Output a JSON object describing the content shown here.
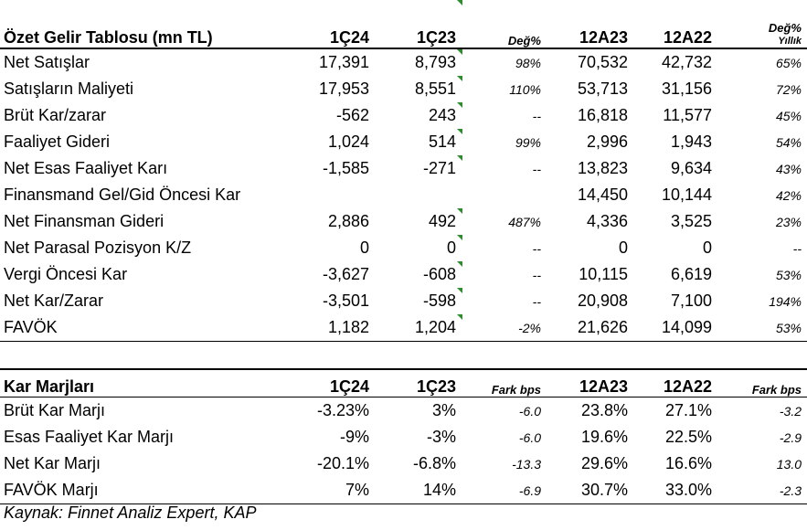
{
  "income": {
    "headers": {
      "title": "Özet Gelir Tablosu (mn TL)",
      "q24": "1Ç24",
      "q23": "1Ç23",
      "chg": "Değ%",
      "t23": "12A23",
      "t22": "12A22",
      "yoy_top": "Değ%",
      "yoy_bottom": "Yıllık"
    },
    "rows": [
      {
        "label": "Net Satışlar",
        "q24": "17,391",
        "q23": "8,793",
        "chg": "98%",
        "t23": "70,532",
        "t22": "42,732",
        "yoy": "65%"
      },
      {
        "label": "Satışların Maliyeti",
        "q24": "17,953",
        "q23": "8,551",
        "chg": "110%",
        "t23": "53,713",
        "t22": "31,156",
        "yoy": "72%"
      },
      {
        "label": "Brüt Kar/zarar",
        "q24": "-562",
        "q23": "243",
        "chg": "--",
        "t23": "16,818",
        "t22": "11,577",
        "yoy": "45%"
      },
      {
        "label": "Faaliyet Gideri",
        "q24": "1,024",
        "q23": "514",
        "chg": "99%",
        "t23": "2,996",
        "t22": "1,943",
        "yoy": "54%"
      },
      {
        "label": "Net Esas Faaliyet Karı",
        "q24": "-1,585",
        "q23": "-271",
        "chg": "--",
        "t23": "13,823",
        "t22": "9,634",
        "yoy": "43%"
      },
      {
        "label": "Finansmand Gel/Gid Öncesi Kar",
        "q24": "",
        "q23": "",
        "chg": "",
        "t23": "14,450",
        "t22": "10,144",
        "yoy": "42%"
      },
      {
        "label": "Net Finansman Gideri",
        "q24": "2,886",
        "q23": "492",
        "chg": "487%",
        "t23": "4,336",
        "t22": "3,525",
        "yoy": "23%"
      },
      {
        "label": "Net Parasal Pozisyon K/Z",
        "q24": "0",
        "q23": "0",
        "chg": "--",
        "t23": "0",
        "t22": "0",
        "yoy": "--"
      },
      {
        "label": "Vergi Öncesi Kar",
        "q24": "-3,627",
        "q23": "-608",
        "chg": "--",
        "t23": "10,115",
        "t22": "6,619",
        "yoy": "53%"
      },
      {
        "label": "Net Kar/Zarar",
        "q24": "-3,501",
        "q23": "-598",
        "chg": "--",
        "t23": "20,908",
        "t22": "7,100",
        "yoy": "194%"
      },
      {
        "label": "FAVÖK",
        "q24": "1,182",
        "q23": "1,204",
        "chg": "-2%",
        "t23": "21,626",
        "t22": "14,099",
        "yoy": "53%"
      }
    ]
  },
  "margins": {
    "headers": {
      "title": "Kar Marjları",
      "q24": "1Ç24",
      "q23": "1Ç23",
      "chg": "Fark bps",
      "t23": "12A23",
      "t22": "12A22",
      "yoy": "Fark bps"
    },
    "rows": [
      {
        "label": "Brüt Kar Marjı",
        "q24": "-3.23%",
        "q23": "3%",
        "chg": "-6.0",
        "t23": "23.8%",
        "t22": "27.1%",
        "yoy": "-3.2"
      },
      {
        "label": "Esas Faaliyet Kar Marjı",
        "q24": "-9%",
        "q23": "-3%",
        "chg": "-6.0",
        "t23": "19.6%",
        "t22": "22.5%",
        "yoy": "-2.9"
      },
      {
        "label": "Net Kar Marjı",
        "q24": "-20.1%",
        "q23": "-6.8%",
        "chg": "-13.3",
        "t23": "29.6%",
        "t22": "16.6%",
        "yoy": "13.0"
      },
      {
        "label": "FAVÖK Marjı",
        "q24": "7%",
        "q23": "14%",
        "chg": "-6.9",
        "t23": "30.7%",
        "t22": "33.0%",
        "yoy": "-2.3"
      }
    ]
  },
  "source": "Kaynak: Finnet Analiz Expert, KAP"
}
